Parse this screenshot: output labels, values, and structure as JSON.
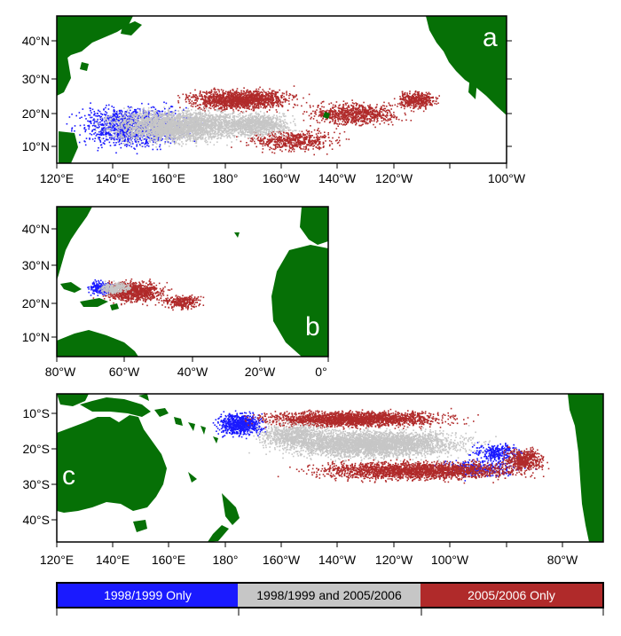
{
  "panels": [
    {
      "letter": "a",
      "lat_labels": [
        "10°N",
        "20°N",
        "30°N",
        "40°N"
      ],
      "lon_labels": [
        "120°E",
        "140°E",
        "160°E",
        "180°",
        "160°W",
        "140°W",
        "120°W",
        "100°W"
      ]
    },
    {
      "letter": "b",
      "lat_labels": [
        "10°N",
        "20°N",
        "30°N",
        "40°N"
      ],
      "lon_labels": [
        "80°W",
        "60°W",
        "40°W",
        "20°W",
        "0°"
      ]
    },
    {
      "letter": "c",
      "lat_labels": [
        "10°S",
        "20°S",
        "30°S",
        "40°S"
      ],
      "lon_labels": [
        "120°E",
        "140°E",
        "160°E",
        "180°",
        "160°W",
        "140°W",
        "120°W",
        "100°W",
        "80°W"
      ]
    }
  ],
  "legend": {
    "items": [
      {
        "label": "1998/1999 Only",
        "color": "#1a1aff",
        "text_color": "#ffffff"
      },
      {
        "label": "1998/1999 and 2005/2006",
        "color": "#c6c6c6",
        "text_color": "#000000"
      },
      {
        "label": "2005/2006 Only",
        "color": "#b02a2a",
        "text_color": "#ffffff"
      }
    ]
  },
  "colors": {
    "land": "#067006",
    "blue_only": "#1a1aff",
    "both": "#c6c6c6",
    "red_only": "#b02a2a"
  }
}
